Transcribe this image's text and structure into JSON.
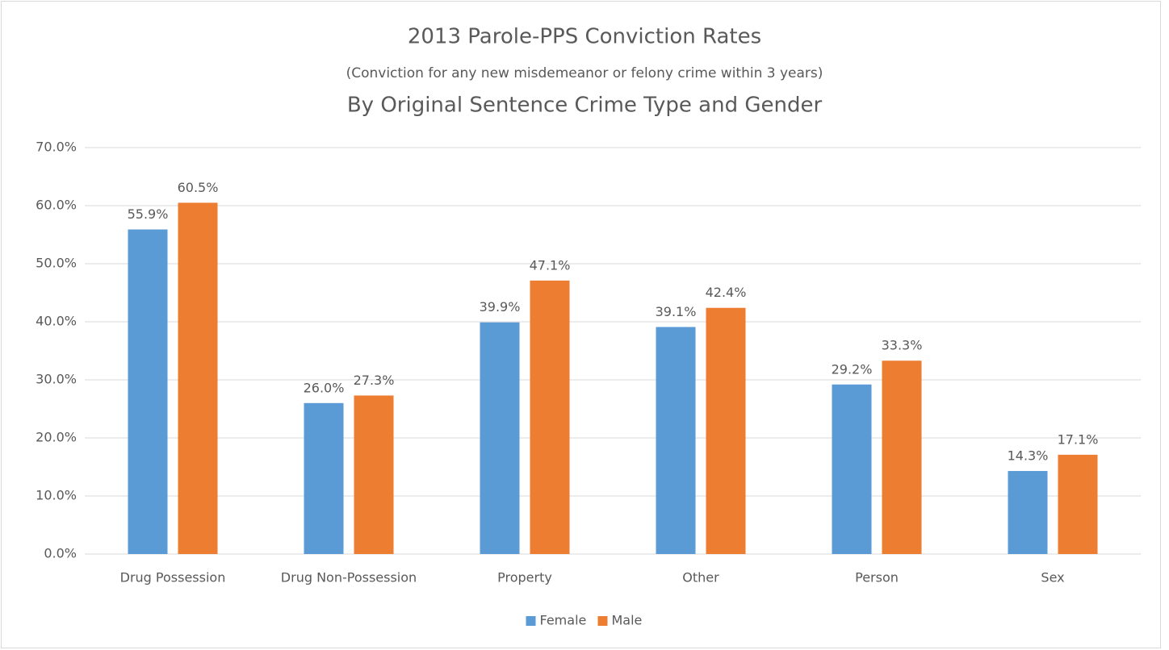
{
  "chart_data": {
    "type": "bar",
    "title": "2013 Parole-PPS Conviction Rates",
    "subtitle": "(Conviction for any new misdemeanor or felony crime within 3 years)",
    "subtitle2": "By Original Sentence Crime Type and Gender",
    "categories": [
      "Drug Possession",
      "Drug Non-Possession",
      "Property",
      "Other",
      "Person",
      "Sex"
    ],
    "series": [
      {
        "name": "Female",
        "color": "#5b9bd5",
        "values": [
          55.9,
          26.0,
          39.9,
          39.1,
          29.2,
          14.3
        ],
        "value_labels": [
          "55.9%",
          "26.0%",
          "39.9%",
          "39.1%",
          "29.2%",
          "14.3%"
        ]
      },
      {
        "name": "Male",
        "color": "#ed7d31",
        "values": [
          60.5,
          27.3,
          47.1,
          42.4,
          33.3,
          17.1
        ],
        "value_labels": [
          "60.5%",
          "27.3%",
          "47.1%",
          "42.4%",
          "33.3%",
          "17.1%"
        ]
      }
    ],
    "ylim": [
      0,
      70
    ],
    "yticks": [
      {
        "value": 0,
        "label": "0.0%"
      },
      {
        "value": 10,
        "label": "10.0%"
      },
      {
        "value": 20,
        "label": "20.0%"
      },
      {
        "value": 30,
        "label": "30.0%"
      },
      {
        "value": 40,
        "label": "40.0%"
      },
      {
        "value": 50,
        "label": "50.0%"
      },
      {
        "value": 60,
        "label": "60.0%"
      },
      {
        "value": 70,
        "label": "70.0%"
      }
    ],
    "grid": true,
    "legend": "bottom"
  }
}
